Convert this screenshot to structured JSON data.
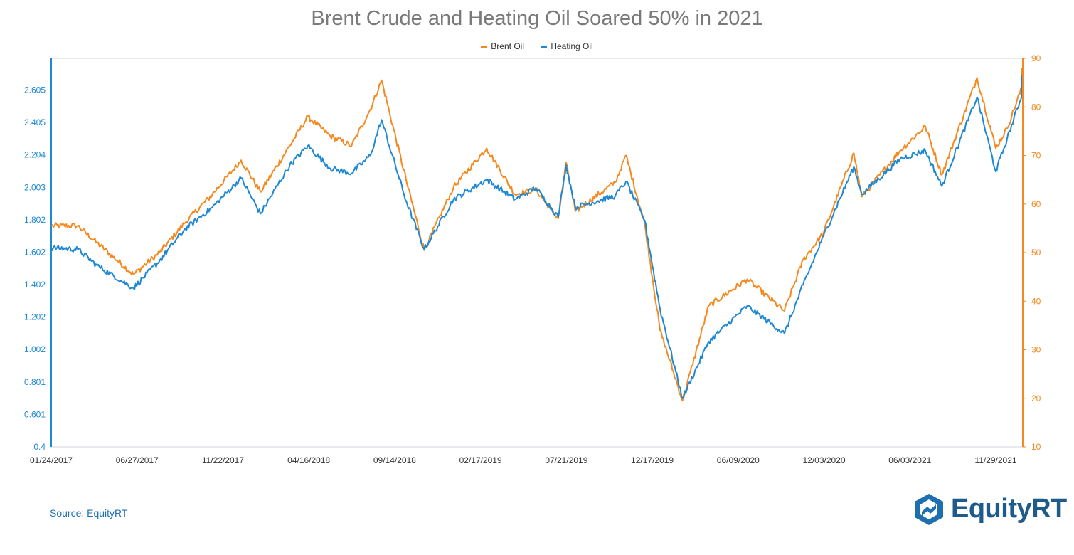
{
  "chart_data": {
    "type": "line",
    "title": "Brent Crude and Heating Oil Soared 50% in 2021",
    "xlabel": "",
    "grid": false,
    "legend_position": "top-center",
    "x_tick_labels": [
      "01/24/2017",
      "06/27/2017",
      "11/22/2017",
      "04/16/2018",
      "09/14/2018",
      "02/17/2019",
      "07/21/2019",
      "12/17/2019",
      "06/09/2020",
      "12/03/2020",
      "06/03/2021",
      "11/29/2021"
    ],
    "y_left": {
      "ylabel": "",
      "ylim": [
        0.4,
        2.8
      ],
      "ticks": [
        "0.4",
        "0.601",
        "0.801",
        "1.002",
        "1.202",
        "1.402",
        "1.602",
        "1.802",
        "2.003",
        "2.204",
        "2.405",
        "2.605"
      ],
      "color": "#1e88d4"
    },
    "y_right": {
      "ylabel": "",
      "ylim": [
        10,
        90
      ],
      "ticks": [
        "10",
        "20",
        "30",
        "40",
        "50",
        "60",
        "70",
        "80",
        "90"
      ],
      "color": "#f5891f"
    },
    "series": [
      {
        "name": "Brent Oil",
        "axis": "right",
        "color": "#f5891f",
        "x": [
          "01/24/2017",
          "03/15/2017",
          "04/20/2017",
          "06/27/2017",
          "08/15/2017",
          "09/30/2017",
          "11/22/2017",
          "01/15/2018",
          "02/20/2018",
          "04/16/2018",
          "05/20/2018",
          "07/01/2018",
          "08/10/2018",
          "09/14/2018",
          "10/05/2018",
          "11/20/2018",
          "12/24/2018",
          "02/17/2019",
          "04/20/2019",
          "06/12/2019",
          "07/21/2019",
          "09/01/2019",
          "09/16/2019",
          "10/03/2019",
          "12/17/2019",
          "01/06/2020",
          "02/10/2020",
          "03/10/2020",
          "04/21/2020",
          "06/09/2020",
          "08/20/2020",
          "10/29/2020",
          "12/03/2020",
          "01/10/2021",
          "03/08/2021",
          "03/23/2021",
          "06/03/2021",
          "07/20/2021",
          "08/20/2021",
          "10/25/2021",
          "11/29/2021",
          "12/20/2021",
          "01/30/2022"
        ],
        "values": [
          55.5,
          55.5,
          52.0,
          45.5,
          50.0,
          56.0,
          62.0,
          69.0,
          62.5,
          72.0,
          78.0,
          74.0,
          72.0,
          79.5,
          85.5,
          65.0,
          50.5,
          63.5,
          71.5,
          62.0,
          63.0,
          57.0,
          68.5,
          58.5,
          64.5,
          70.0,
          56.0,
          34.0,
          19.5,
          39.0,
          44.5,
          38.0,
          48.5,
          54.0,
          70.5,
          61.5,
          71.0,
          76.0,
          66.0,
          86.0,
          71.5,
          75.5,
          88.0
        ]
      },
      {
        "name": "Heating Oil",
        "axis": "left",
        "color": "#1e88d4",
        "x": [
          "01/24/2017",
          "03/15/2017",
          "04/20/2017",
          "06/27/2017",
          "08/15/2017",
          "09/30/2017",
          "11/22/2017",
          "01/15/2018",
          "02/20/2018",
          "04/16/2018",
          "05/20/2018",
          "07/01/2018",
          "08/10/2018",
          "09/14/2018",
          "10/05/2018",
          "11/20/2018",
          "12/24/2018",
          "02/17/2019",
          "04/20/2019",
          "06/12/2019",
          "07/21/2019",
          "09/01/2019",
          "09/16/2019",
          "10/03/2019",
          "12/17/2019",
          "01/06/2020",
          "02/10/2020",
          "03/10/2020",
          "04/21/2020",
          "06/09/2020",
          "08/20/2020",
          "10/29/2020",
          "12/03/2020",
          "01/10/2021",
          "03/08/2021",
          "03/23/2021",
          "06/03/2021",
          "07/20/2021",
          "08/20/2021",
          "10/25/2021",
          "11/29/2021",
          "12/20/2021",
          "01/30/2022"
        ],
        "values": [
          1.63,
          1.62,
          1.52,
          1.38,
          1.55,
          1.74,
          1.88,
          2.06,
          1.84,
          2.14,
          2.26,
          2.12,
          2.09,
          2.2,
          2.42,
          1.92,
          1.62,
          1.93,
          2.05,
          1.93,
          2.0,
          1.82,
          2.14,
          1.88,
          1.95,
          2.04,
          1.8,
          1.25,
          0.7,
          1.05,
          1.27,
          1.1,
          1.4,
          1.7,
          2.13,
          1.96,
          2.18,
          2.23,
          2.01,
          2.56,
          2.1,
          2.3,
          2.7
        ]
      }
    ]
  },
  "source_note": "Source: EquityRT",
  "logo_text": "EquityRT"
}
